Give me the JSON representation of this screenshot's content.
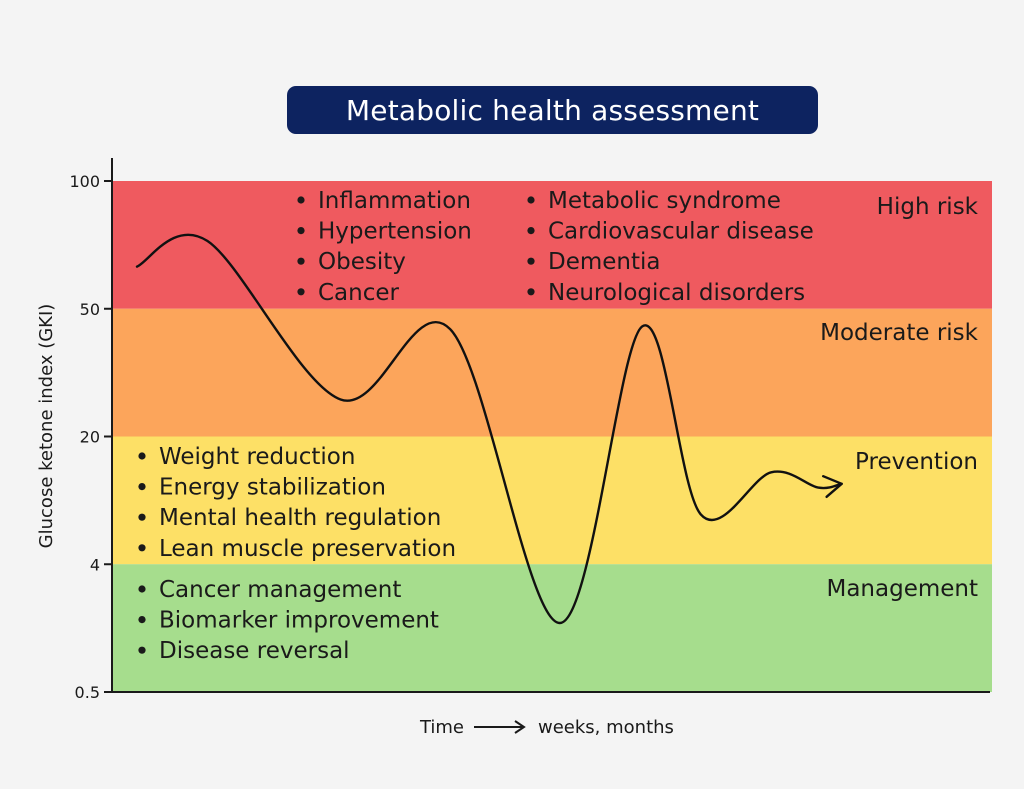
{
  "chart_data": {
    "type": "line",
    "title": "Metabolic health assessment",
    "ylabel": "Glucose ketone index (GKI)",
    "xlabel": "Time",
    "xlabel_suffix": "weeks, months",
    "y_ticks": [
      "100",
      "50",
      "20",
      "4",
      "0.5"
    ],
    "bands": [
      {
        "name": "High risk",
        "from_level": 4,
        "to_level": 5,
        "color": "#ef5a5f"
      },
      {
        "name": "Moderate risk",
        "from_level": 3,
        "to_level": 4,
        "color": "#fca55b"
      },
      {
        "name": "Prevention",
        "from_level": 2,
        "to_level": 3,
        "color": "#fde066"
      },
      {
        "name": "Management",
        "from_level": 1,
        "to_level": 2,
        "color": "#a6dd8d"
      }
    ],
    "band_lists": {
      "high_risk_col1": [
        "Inflammation",
        "Hypertension",
        "Obesity",
        "Cancer"
      ],
      "high_risk_col2": [
        "Metabolic syndrome",
        "Cardiovascular disease",
        "Dementia",
        "Neurological disorders"
      ],
      "prevention": [
        "Weight reduction",
        "Energy stabilization",
        "Mental health regulation",
        "Lean muscle preservation"
      ],
      "management": [
        "Cancer management",
        "Biomarker improvement",
        "Disease reversal"
      ]
    },
    "curve": {
      "x": [
        0.0,
        0.09,
        0.26,
        0.4,
        0.54,
        0.645,
        0.72,
        0.81,
        0.87,
        0.9
      ],
      "level": [
        4.33,
        4.53,
        3.29,
        3.84,
        1.54,
        3.86,
        2.39,
        2.72,
        2.6,
        2.63
      ]
    }
  }
}
